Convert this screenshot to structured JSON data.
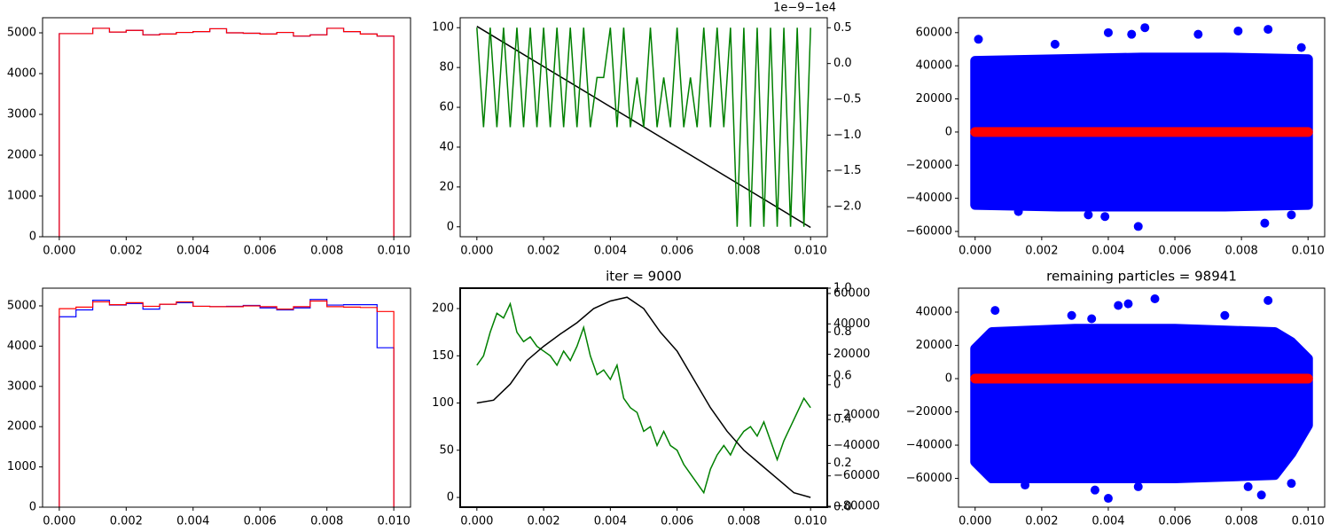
{
  "chart_data": [
    {
      "type": "histogram",
      "xlim": [
        -0.0005,
        0.0105
      ],
      "ylim": [
        0,
        5370
      ],
      "xticks": [
        {
          "value": 0,
          "label": "0.000"
        },
        {
          "value": 0.002,
          "label": "0.002"
        },
        {
          "value": 0.004,
          "label": "0.004"
        },
        {
          "value": 0.006,
          "label": "0.006"
        },
        {
          "value": 0.008,
          "label": "0.008"
        },
        {
          "value": 0.01,
          "label": "0.010"
        }
      ],
      "yticks": [
        0,
        1000,
        2000,
        3000,
        4000,
        5000
      ],
      "bins": [
        0,
        0.0005,
        0.001,
        0.0015,
        0.002,
        0.0025,
        0.003,
        0.0035,
        0.004,
        0.0045,
        0.005,
        0.0055,
        0.006,
        0.0065,
        0.007,
        0.0075,
        0.008,
        0.0085,
        0.009,
        0.0095,
        0.01
      ],
      "series": [
        {
          "color": "#0000ff",
          "values": [
            4980,
            4980,
            5110,
            5020,
            5060,
            4950,
            4970,
            5010,
            5030,
            5100,
            5000,
            4990,
            4970,
            5010,
            4920,
            4950,
            5110,
            5030,
            4970,
            4920
          ]
        },
        {
          "color": "#ff0000",
          "values": [
            4980,
            4980,
            5110,
            5020,
            5060,
            4950,
            4970,
            5010,
            5030,
            5100,
            5000,
            4990,
            4970,
            5010,
            4920,
            4950,
            5110,
            5030,
            4970,
            4920
          ]
        }
      ]
    },
    {
      "type": "line",
      "xlim": [
        -0.0005,
        0.0105
      ],
      "ylim": [
        -5,
        105
      ],
      "y2lim": [
        -2.42,
        0.64
      ],
      "y2_offset_label": "1e−9−1e4",
      "xticks": [
        {
          "value": 0,
          "label": "0.000"
        },
        {
          "value": 0.002,
          "label": "0.002"
        },
        {
          "value": 0.004,
          "label": "0.004"
        },
        {
          "value": 0.006,
          "label": "0.006"
        },
        {
          "value": 0.008,
          "label": "0.008"
        },
        {
          "value": 0.01,
          "label": "0.010"
        }
      ],
      "yticks": [
        0,
        20,
        40,
        60,
        80,
        100
      ],
      "y2ticks": [
        0.5,
        {
          "value": 0,
          "label": "0.0"
        },
        {
          "value": -0.5,
          "label": "−0.5"
        },
        {
          "value": -1,
          "label": "−1.0"
        },
        {
          "value": -1.5,
          "label": "−1.5"
        },
        {
          "value": -2,
          "label": "−2.0"
        }
      ],
      "series": [
        {
          "color": "#000000",
          "axis": "y2",
          "x": [
            0,
            0.01
          ],
          "values": [
            0.52,
            -2.29
          ]
        },
        {
          "color": "#008000",
          "x": [
            0,
            0.0002,
            0.0004,
            0.0006,
            0.0008,
            0.001,
            0.0012,
            0.0014,
            0.0016,
            0.0018,
            0.002,
            0.0022,
            0.0024,
            0.0026,
            0.0028,
            0.003,
            0.0032,
            0.0034,
            0.0036,
            0.0038,
            0.004,
            0.0042,
            0.0044,
            0.0046,
            0.0048,
            0.005,
            0.0052,
            0.0054,
            0.0056,
            0.0058,
            0.006,
            0.0062,
            0.0064,
            0.0066,
            0.0068,
            0.007,
            0.0072,
            0.0074,
            0.0076,
            0.0078,
            0.008,
            0.0082,
            0.0084,
            0.0086,
            0.0088,
            0.009,
            0.0092,
            0.0094,
            0.0096,
            0.0098,
            0.01
          ],
          "values": [
            100,
            50,
            100,
            50,
            100,
            50,
            100,
            50,
            100,
            50,
            100,
            50,
            100,
            50,
            100,
            50,
            100,
            50,
            75,
            75,
            100,
            50,
            100,
            50,
            75,
            50,
            100,
            50,
            75,
            50,
            100,
            50,
            75,
            50,
            100,
            50,
            100,
            50,
            100,
            0,
            100,
            0,
            100,
            0,
            100,
            0,
            100,
            0,
            100,
            0,
            100
          ]
        }
      ]
    },
    {
      "type": "scatter",
      "xlim": [
        -0.0005,
        0.0105
      ],
      "ylim": [
        -63200,
        69000
      ],
      "xticks": [
        {
          "value": 0,
          "label": "0.000"
        },
        {
          "value": 0.002,
          "label": "0.002"
        },
        {
          "value": 0.004,
          "label": "0.004"
        },
        {
          "value": 0.006,
          "label": "0.006"
        },
        {
          "value": 0.008,
          "label": "0.008"
        },
        {
          "value": 0.01,
          "label": "0.010"
        }
      ],
      "yticks": [
        {
          "value": -60000,
          "label": "−60000"
        },
        {
          "value": -40000,
          "label": "−40000"
        },
        {
          "value": -20000,
          "label": "−20000"
        },
        0,
        20000,
        40000,
        60000
      ],
      "bands": [
        {
          "color": "#0000ff",
          "x": [
            0,
            0.0025,
            0.005,
            0.0075,
            0.01
          ],
          "low": [
            -44000,
            -45000,
            -45000,
            -45000,
            -44000
          ],
          "high": [
            43000,
            44000,
            45000,
            45000,
            44000
          ]
        },
        {
          "color": "#ff0000",
          "x": [
            0,
            0.01
          ],
          "low": [
            0,
            0
          ],
          "high": [
            0,
            0
          ]
        }
      ],
      "series": [
        {
          "color": "#0000ff",
          "x": [
            0.0001,
            0.0024,
            0.004,
            0.0047,
            0.0051,
            0.0067,
            0.0079,
            0.0088,
            0.0098,
            0.0049,
            0.0087,
            0.0034,
            0.0013,
            0.0095,
            0.0039
          ],
          "values": [
            56000,
            53000,
            60000,
            59000,
            63000,
            59000,
            61000,
            62000,
            51000,
            -57000,
            -55000,
            -50000,
            -48000,
            -50000,
            -51000
          ]
        }
      ]
    },
    {
      "type": "histogram",
      "xlim": [
        -0.0005,
        0.0105
      ],
      "ylim": [
        0,
        5440
      ],
      "xticks": [
        {
          "value": 0,
          "label": "0.000"
        },
        {
          "value": 0.002,
          "label": "0.002"
        },
        {
          "value": 0.004,
          "label": "0.004"
        },
        {
          "value": 0.006,
          "label": "0.006"
        },
        {
          "value": 0.008,
          "label": "0.008"
        },
        {
          "value": 0.01,
          "label": "0.010"
        }
      ],
      "yticks": [
        0,
        1000,
        2000,
        3000,
        4000,
        5000
      ],
      "bins": [
        0,
        0.0005,
        0.001,
        0.0015,
        0.002,
        0.0025,
        0.003,
        0.0035,
        0.004,
        0.0045,
        0.005,
        0.0055,
        0.006,
        0.0065,
        0.007,
        0.0075,
        0.008,
        0.0085,
        0.009,
        0.0095,
        0.01
      ],
      "series": [
        {
          "color": "#0000ff",
          "values": [
            4730,
            4900,
            5140,
            5020,
            5060,
            4920,
            5040,
            5080,
            4990,
            4980,
            4990,
            5010,
            4950,
            4900,
            4950,
            5160,
            5020,
            5030,
            5030,
            3960
          ]
        },
        {
          "color": "#ff0000",
          "values": [
            4930,
            4970,
            5100,
            5030,
            5080,
            4990,
            5040,
            5100,
            4990,
            4980,
            4980,
            5000,
            4980,
            4920,
            4980,
            5120,
            4980,
            4970,
            4960,
            4860
          ]
        }
      ]
    },
    {
      "type": "line",
      "title": "iter = 9000",
      "xlim": [
        -0.0005,
        0.0105
      ],
      "ylim": [
        -10.3,
        221.6
      ],
      "y2lim": [
        -80600,
        63500
      ],
      "y3lim": [
        0,
        1
      ],
      "xticks": [
        {
          "value": 0,
          "label": "0.000"
        },
        {
          "value": 0.002,
          "label": "0.002"
        },
        {
          "value": 0.004,
          "label": "0.004"
        },
        {
          "value": 0.006,
          "label": "0.006"
        },
        {
          "value": 0.008,
          "label": "0.008"
        },
        {
          "value": 0.01,
          "label": "0.010"
        }
      ],
      "yticks": [
        0,
        50,
        100,
        150,
        200
      ],
      "y2ticks": [
        {
          "value": -80000,
          "label": "−80000"
        },
        {
          "value": -60000,
          "label": "−60000"
        },
        {
          "value": -40000,
          "label": "−40000"
        },
        {
          "value": -20000,
          "label": "−20000"
        },
        0,
        20000,
        40000,
        60000
      ],
      "y3ticks": [
        {
          "value": 0,
          "label": "0.0"
        },
        0.2,
        0.4,
        0.6,
        0.8,
        {
          "value": 1,
          "label": "1.0"
        }
      ],
      "series": [
        {
          "color": "#008000",
          "x": [
            0,
            0.0002,
            0.0004,
            0.0006,
            0.0008,
            0.001,
            0.0012,
            0.0014,
            0.0016,
            0.0018,
            0.002,
            0.0022,
            0.0024,
            0.0026,
            0.0028,
            0.003,
            0.0032,
            0.0034,
            0.0036,
            0.0038,
            0.004,
            0.0042,
            0.0044,
            0.0046,
            0.0048,
            0.005,
            0.0052,
            0.0054,
            0.0056,
            0.0058,
            0.006,
            0.0062,
            0.0064,
            0.0066,
            0.0068,
            0.007,
            0.0072,
            0.0074,
            0.0076,
            0.0078,
            0.008,
            0.0082,
            0.0084,
            0.0086,
            0.0088,
            0.009,
            0.0092,
            0.0094,
            0.0096,
            0.0098,
            0.01
          ],
          "values": [
            140,
            150,
            175,
            195,
            190,
            205,
            175,
            165,
            170,
            160,
            155,
            150,
            140,
            155,
            145,
            160,
            180,
            150,
            130,
            135,
            125,
            140,
            105,
            95,
            90,
            70,
            75,
            55,
            70,
            55,
            50,
            35,
            25,
            15,
            5,
            30,
            45,
            55,
            45,
            60,
            70,
            75,
            65,
            80,
            60,
            40,
            60,
            75,
            90,
            105,
            95
          ]
        },
        {
          "color": "#000000",
          "x": [
            0,
            0.0005,
            0.001,
            0.0015,
            0.002,
            0.0025,
            0.003,
            0.0035,
            0.004,
            0.0045,
            0.005,
            0.0055,
            0.006,
            0.0065,
            0.007,
            0.0075,
            0.008,
            0.0085,
            0.009,
            0.0095,
            0.01
          ],
          "values": [
            100,
            103,
            120,
            145,
            160,
            173,
            185,
            200,
            208,
            212,
            200,
            175,
            155,
            125,
            95,
            70,
            50,
            35,
            20,
            5,
            0
          ]
        }
      ]
    },
    {
      "type": "scatter",
      "title": "remaining particles = 98941",
      "xlim": [
        -0.0005,
        0.0105
      ],
      "ylim": [
        -77300,
        54400
      ],
      "xticks": [
        {
          "value": 0,
          "label": "0.000"
        },
        {
          "value": 0.002,
          "label": "0.002"
        },
        {
          "value": 0.004,
          "label": "0.004"
        },
        {
          "value": 0.006,
          "label": "0.006"
        },
        {
          "value": 0.008,
          "label": "0.008"
        },
        {
          "value": 0.01,
          "label": "0.010"
        }
      ],
      "yticks": [
        {
          "value": -60000,
          "label": "−60000"
        },
        {
          "value": -40000,
          "label": "−40000"
        },
        {
          "value": -20000,
          "label": "−20000"
        },
        0,
        20000,
        40000
      ],
      "bands": [
        {
          "color": "#0000ff",
          "x": [
            0,
            0.0005,
            0.003,
            0.006,
            0.009,
            0.0095,
            0.01
          ],
          "low": [
            -50000,
            -60000,
            -60000,
            -60000,
            -58000,
            -45000,
            -28000
          ],
          "high": [
            18000,
            28000,
            30000,
            30000,
            28000,
            22000,
            12000
          ]
        },
        {
          "color": "#ff0000",
          "x": [
            0,
            0.01
          ],
          "low": [
            0,
            0
          ],
          "high": [
            0,
            0
          ]
        }
      ],
      "series": [
        {
          "color": "#0000ff",
          "x": [
            0.0006,
            0.0029,
            0.0035,
            0.0043,
            0.0046,
            0.0054,
            0.0075,
            0.0088,
            0.0015,
            0.0036,
            0.004,
            0.0049,
            0.0082,
            0.0086,
            0.0095
          ],
          "values": [
            41000,
            38000,
            36000,
            44000,
            45000,
            48000,
            38000,
            47000,
            -64000,
            -67000,
            -72000,
            -65000,
            -65000,
            -70000,
            -63000
          ]
        }
      ]
    }
  ]
}
